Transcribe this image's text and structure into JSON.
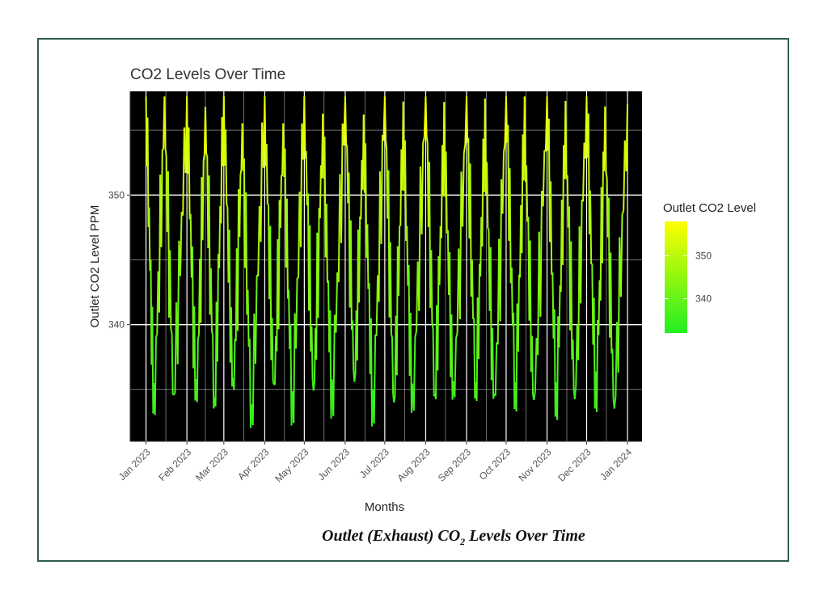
{
  "chart_data": {
    "type": "line",
    "title": "CO2 Levels Over Time",
    "xlabel": "Months",
    "ylabel": "Outlet CO2 Level PPM",
    "x_tick_labels": [
      "Jan 2023",
      "Feb 2023",
      "Mar 2023",
      "Apr 2023",
      "May 2023",
      "Jun 2023",
      "Jul 2023",
      "Aug 2023",
      "Sep 2023",
      "Oct 2023",
      "Nov 2023",
      "Dec 2023",
      "Jan 2024"
    ],
    "y_tick_labels": [
      "340",
      "350"
    ],
    "y_ticks": [
      340,
      350
    ],
    "ylim": [
      331,
      358
    ],
    "xlim": [
      "2022-12-20",
      "2024-01-12"
    ],
    "grid": true,
    "background": "#000000",
    "gridline_color": "#ffffff",
    "color_scale": {
      "title": "Outlet CO2 Level",
      "low_color": "#22ee22",
      "high_color": "#ffff00",
      "range": [
        332,
        358
      ],
      "tick_labels": [
        "340",
        "350"
      ],
      "ticks": [
        340,
        350
      ]
    },
    "series": [
      {
        "description_points": [
          [
            "2023-01-01",
            357.5
          ],
          [
            "2023-01-07",
            333.0
          ],
          [
            "2023-01-15",
            356.5
          ],
          [
            "2023-01-22",
            334.0
          ],
          [
            "2023-02-01",
            357.0
          ],
          [
            "2023-02-08",
            333.5
          ],
          [
            "2023-02-15",
            356.0
          ],
          [
            "2023-02-22",
            333.5
          ],
          [
            "2023-03-01",
            357.5
          ],
          [
            "2023-03-08",
            334.0
          ],
          [
            "2023-03-15",
            355.0
          ],
          [
            "2023-03-22",
            332.5
          ],
          [
            "2023-04-01",
            357.0
          ],
          [
            "2023-04-08",
            334.0
          ],
          [
            "2023-04-15",
            355.0
          ],
          [
            "2023-04-22",
            333.0
          ],
          [
            "2023-05-01",
            357.0
          ],
          [
            "2023-05-08",
            334.0
          ],
          [
            "2023-05-15",
            355.5
          ],
          [
            "2023-05-22",
            333.5
          ],
          [
            "2023-06-01",
            357.5
          ],
          [
            "2023-06-08",
            335.0
          ],
          [
            "2023-06-15",
            355.0
          ],
          [
            "2023-06-22",
            332.5
          ],
          [
            "2023-07-01",
            357.5
          ],
          [
            "2023-07-08",
            333.5
          ],
          [
            "2023-07-15",
            355.5
          ],
          [
            "2023-07-22",
            333.0
          ],
          [
            "2023-08-01",
            357.5
          ],
          [
            "2023-08-08",
            334.0
          ],
          [
            "2023-08-15",
            355.0
          ],
          [
            "2023-08-22",
            333.5
          ],
          [
            "2023-09-01",
            357.0
          ],
          [
            "2023-09-08",
            334.5
          ],
          [
            "2023-09-15",
            355.0
          ],
          [
            "2023-09-22",
            333.0
          ],
          [
            "2023-10-01",
            357.5
          ],
          [
            "2023-10-08",
            334.0
          ],
          [
            "2023-10-15",
            355.5
          ],
          [
            "2023-10-22",
            333.0
          ],
          [
            "2023-11-01",
            357.5
          ],
          [
            "2023-11-08",
            333.5
          ],
          [
            "2023-11-15",
            355.0
          ],
          [
            "2023-11-22",
            333.5
          ],
          [
            "2023-12-01",
            357.5
          ],
          [
            "2023-12-08",
            334.0
          ],
          [
            "2023-12-15",
            355.0
          ],
          [
            "2023-12-22",
            333.0
          ],
          [
            "2024-01-01",
            357.0
          ]
        ]
      }
    ]
  },
  "caption": {
    "main_before": "Outlet (Exhaust) CO",
    "subscript": "2",
    "main_after": " Levels Over Time"
  }
}
